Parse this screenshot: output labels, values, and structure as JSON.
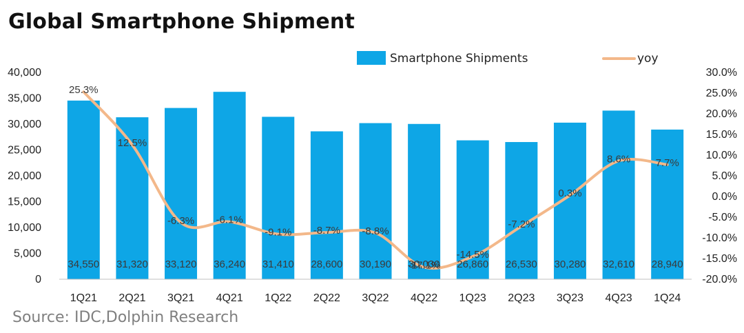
{
  "title": "Global Smartphone Shipment",
  "source": "Source: IDC,Dolphin Research",
  "colors": {
    "bar": "#0ea6e6",
    "line": "#f3b88a",
    "axis": "#bfbfbf"
  },
  "chart_data": {
    "type": "bar+line",
    "categories": [
      "1Q21",
      "2Q21",
      "3Q21",
      "4Q21",
      "1Q22",
      "2Q22",
      "3Q22",
      "4Q22",
      "1Q23",
      "2Q23",
      "3Q23",
      "4Q23",
      "1Q24"
    ],
    "series": [
      {
        "name": "Smartphone Shipments",
        "type": "bar",
        "axis": "left",
        "values": [
          34550,
          31320,
          33120,
          36240,
          31410,
          28600,
          30190,
          30030,
          26860,
          26530,
          30280,
          32610,
          28940
        ],
        "labels": [
          "34,550",
          "31,320",
          "33,120",
          "36,240",
          "31,410",
          "28,600",
          "30,190",
          "30,030",
          "26,860",
          "26,530",
          "30,280",
          "32,610",
          "28,940"
        ]
      },
      {
        "name": "yoy",
        "type": "line",
        "axis": "right",
        "values": [
          25.3,
          12.5,
          -6.3,
          -6.1,
          -9.1,
          -8.7,
          -8.8,
          -17.1,
          -14.5,
          -7.2,
          0.3,
          8.6,
          7.7
        ],
        "labels": [
          "25.3%",
          "12.5%",
          "-6.3%",
          "-6.1%",
          "-9.1%",
          "-8.7%",
          "-8.8%",
          "-17.1%",
          "-14.5%",
          "-7.2%",
          "0.3%",
          "8.6%",
          "7.7%"
        ]
      }
    ],
    "y_left": {
      "min": 0,
      "max": 40000,
      "ticks": [
        "40,000",
        "35,000",
        "30,000",
        "25,000",
        "20,000",
        "15,000",
        "10,000",
        "5,000",
        "0"
      ]
    },
    "y_right": {
      "min": -20,
      "max": 30,
      "ticks": [
        "30.0%",
        "25.0%",
        "20.0%",
        "15.0%",
        "10.0%",
        "5.0%",
        "0.0%",
        "-5.0%",
        "-10.0%",
        "-15.0%",
        "-20.0%"
      ]
    },
    "legend_position": "top",
    "grid": false
  }
}
